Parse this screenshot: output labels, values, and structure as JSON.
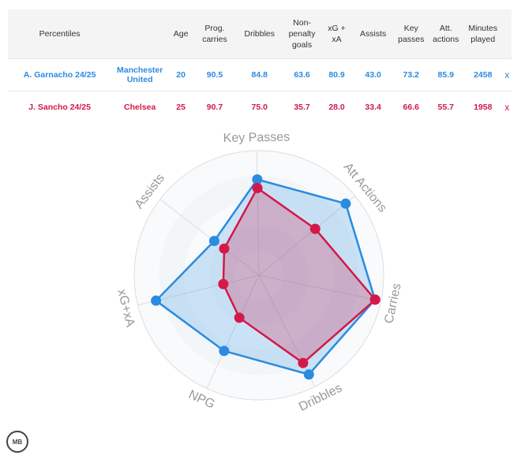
{
  "table": {
    "headers": [
      "Percentiles",
      "",
      "Age",
      "Prog. carries",
      "Dribbles",
      "Non-penalty goals",
      "xG + xA",
      "Assists",
      "Key passes",
      "Att. actions",
      "Minutes played",
      ""
    ],
    "rows": [
      {
        "player": "A. Garnacho 24/25",
        "team": "Manchester United",
        "age": "20",
        "prog": "90.5",
        "drib": "84.8",
        "npg": "63.6",
        "xgxa": "80.9",
        "assists": "43.0",
        "kp": "73.2",
        "att": "85.9",
        "mins": "2458",
        "remove": "x"
      },
      {
        "player": "J. Sancho 24/25",
        "team": "Chelsea",
        "age": "25",
        "prog": "90.7",
        "drib": "75.0",
        "npg": "35.7",
        "xgxa": "28.0",
        "assists": "33.4",
        "kp": "66.6",
        "att": "55.7",
        "mins": "1958",
        "remove": "x"
      }
    ]
  },
  "chart_data": {
    "type": "radar",
    "axes": [
      "Key Passes",
      "Att Actions",
      "Carries",
      "Dribbles",
      "NPG",
      "xG+xA",
      "Assists"
    ],
    "range": [
      0,
      100
    ],
    "series": [
      {
        "name": "A. Garnacho 24/25",
        "color": "#2a8be0",
        "values": [
          73.2,
          85.9,
          90.5,
          84.8,
          63.6,
          80.9,
          43.0
        ]
      },
      {
        "name": "J. Sancho 24/25",
        "color": "#d41848",
        "values": [
          66.6,
          55.7,
          90.7,
          75.0,
          35.7,
          28.0,
          33.4
        ]
      }
    ]
  },
  "logo": "MB"
}
